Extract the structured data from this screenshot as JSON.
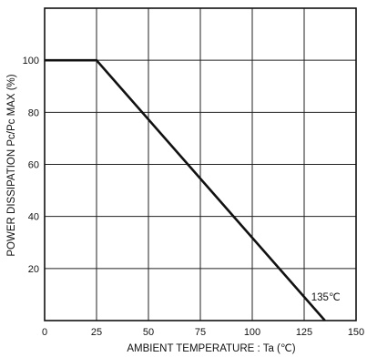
{
  "chart_data": {
    "type": "line",
    "xlabel": "AMBIENT TEMPERATURE : Ta (℃)",
    "ylabel": "POWER DISSIPATION Pc/Pc MAX (%)",
    "xlim": [
      0,
      150
    ],
    "ylim": [
      0,
      120
    ],
    "x_ticks": [
      0,
      25,
      50,
      75,
      100,
      125,
      150
    ],
    "y_ticks": [
      20,
      40,
      60,
      80,
      100
    ],
    "grid": true,
    "series": [
      {
        "x": [
          0,
          25,
          135
        ],
        "y": [
          100,
          100,
          0
        ],
        "color": "#111111"
      }
    ],
    "annotations": [
      {
        "text": "135℃",
        "x": 135,
        "y": 0
      }
    ]
  }
}
